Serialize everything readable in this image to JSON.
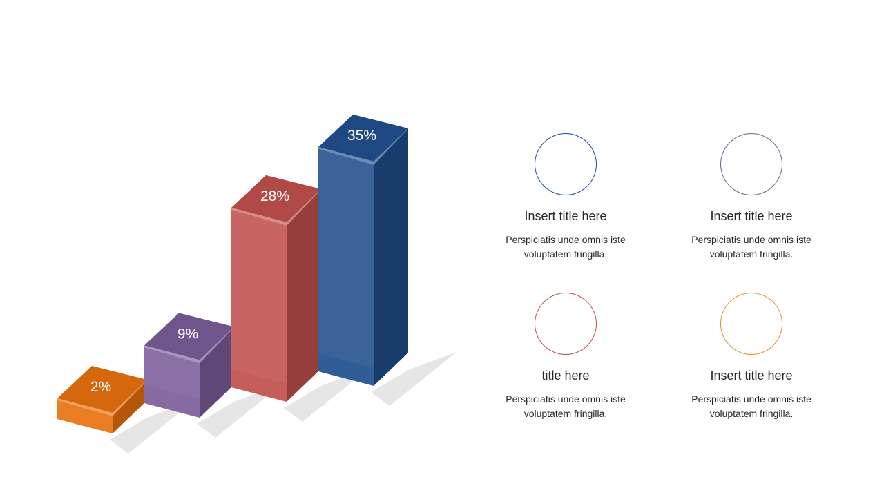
{
  "chart_data": {
    "type": "bar",
    "style": "3d",
    "values": [
      2,
      9,
      28,
      35
    ],
    "labels": [
      "2%",
      "9%",
      "28%",
      "35%"
    ],
    "colors": [
      "#e8700e",
      "#7a5c99",
      "#c0504d",
      "#1f4e8c"
    ],
    "title": "",
    "xlabel": "",
    "ylabel": "",
    "grid": false,
    "legend": "none"
  },
  "info": [
    {
      "title": "Insert title here",
      "desc_line1": "Perspiciatis unde omnis iste",
      "desc_line2": "voluptatem fringilla.",
      "color": "#1f4e8c"
    },
    {
      "title": "Insert title here",
      "desc_line1": "Perspiciatis unde omnis iste",
      "desc_line2": "voluptatem fringilla.",
      "color": "#7a5c99"
    },
    {
      "title": "title here",
      "desc_line1": "Perspiciatis unde omnis iste",
      "desc_line2": "voluptatem fringilla.",
      "color": "#c0504d"
    },
    {
      "title": "Insert title here",
      "desc_line1": "Perspiciatis unde omnis iste",
      "desc_line2": "voluptatem fringilla.",
      "color": "#f08a2c"
    }
  ]
}
